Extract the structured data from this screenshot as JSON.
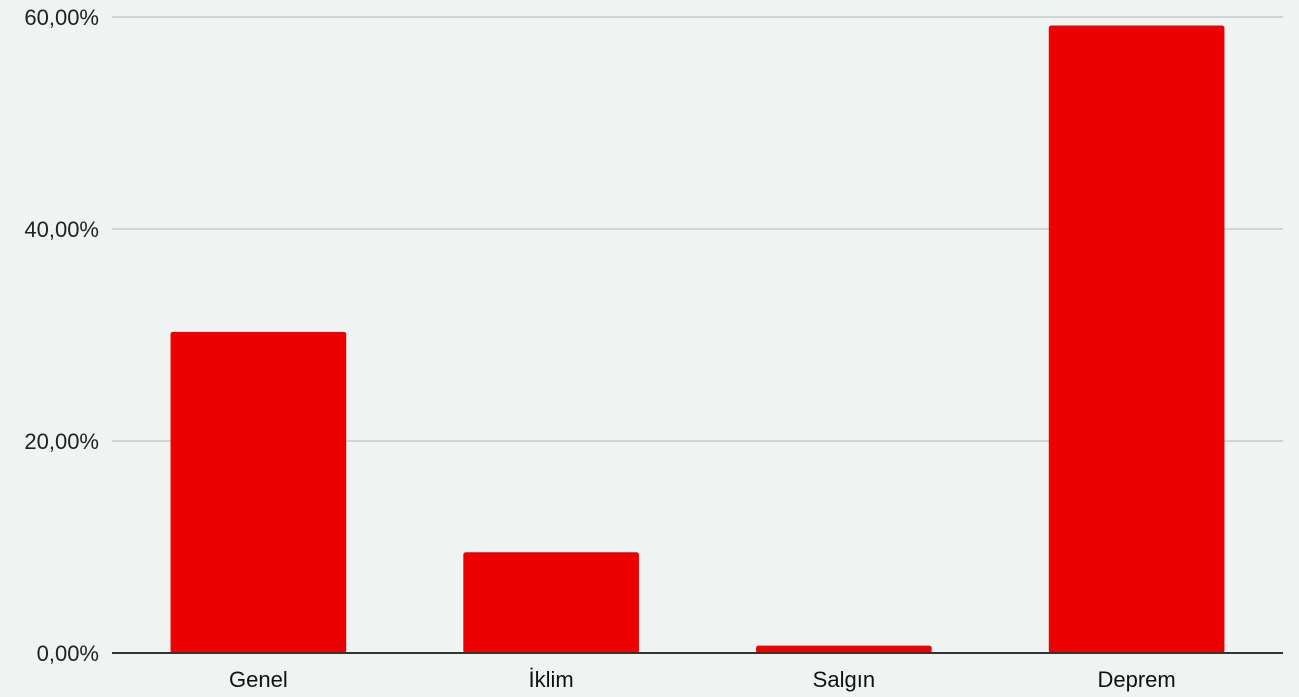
{
  "chart_data": {
    "type": "bar",
    "title": "",
    "xlabel": "",
    "ylabel": "",
    "categories": [
      "Genel",
      "İklim",
      "Salgın",
      "Deprem"
    ],
    "values": [
      30.3,
      9.5,
      0.7,
      59.2
    ],
    "ylim": [
      0,
      60
    ],
    "yticks": [
      0,
      20,
      40,
      60
    ],
    "ytick_labels": [
      "0,00%",
      "20,00%",
      "40,00%",
      "60,00%"
    ],
    "grid": true,
    "legend": "none"
  },
  "colors": {
    "background": "#eff3f2",
    "bar": "#ee0000",
    "gridline": "#c7cbca",
    "axis": "#333333"
  }
}
